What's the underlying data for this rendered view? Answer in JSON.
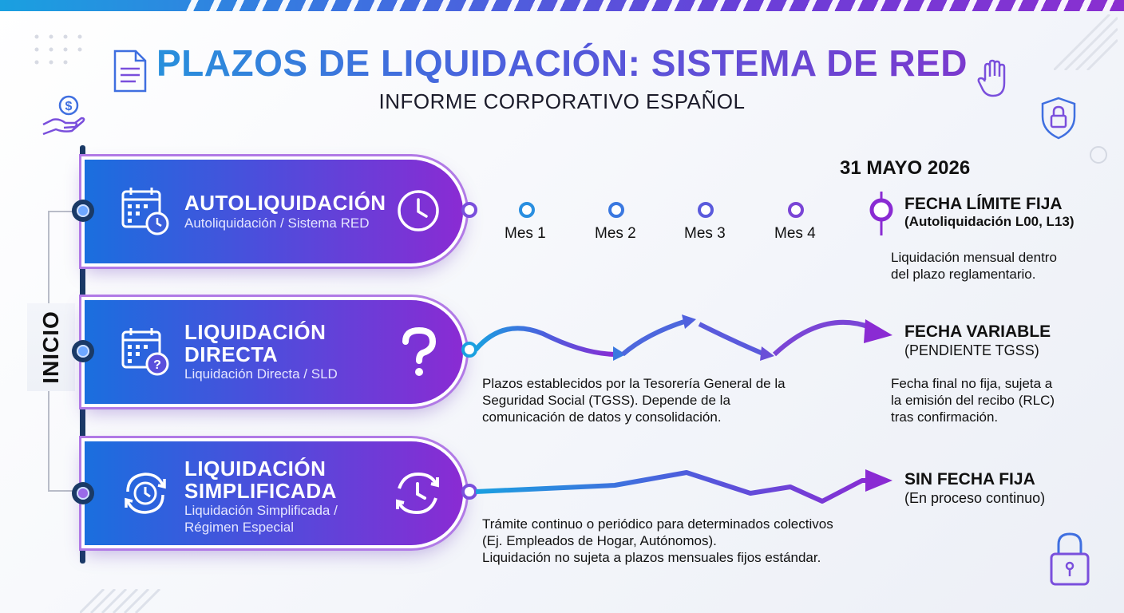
{
  "header": {
    "title": "PLAZOS DE LIQUIDACIÓN: SISTEMA DE RED",
    "subtitle": "INFORME CORPORATIVO ESPAÑOL"
  },
  "axis_label": "INICIO",
  "deadline_date": "31 MAYO 2026",
  "rows": [
    {
      "title": "AUTOLIQUIDACIÓN",
      "subtitle": "Autoliquidación / Sistema RED",
      "icon_left": "calendar-clock-icon",
      "icon_right": "clock-icon",
      "months": [
        "Mes 1",
        "Mes 2",
        "Mes 3",
        "Mes 4"
      ],
      "result_title": "FECHA LÍMITE FIJA",
      "result_sub": "(Autoliquidación L00, L13)",
      "result_desc": [
        "Liquidación mensual dentro",
        "del plazo reglamentario."
      ]
    },
    {
      "title_lines": [
        "LIQUIDACIÓN",
        "DIRECTA"
      ],
      "subtitle": "Liquidación Directa / SLD",
      "icon_left": "calendar-question-icon",
      "icon_right": "question-mark-icon",
      "desc": [
        "Plazos establecidos por la Tesorería General de la",
        "Seguridad Social (TGSS). Depende de la",
        "comunicación de datos y consolidación."
      ],
      "result_title": "FECHA VARIABLE",
      "result_sub": "(PENDIENTE TGSS)",
      "result_desc": [
        "Fecha final no fija, sujeta a",
        "la emisión del recibo (RLC)",
        "tras confirmación."
      ]
    },
    {
      "title_lines": [
        "LIQUIDACIÓN",
        "SIMPLIFICADA"
      ],
      "subtitle_lines": [
        "Liquidación Simplificada /",
        "Régimen Especial"
      ],
      "icon_left": "cycle-clock-icon",
      "icon_right": "refresh-clock-icon",
      "desc": [
        "Trámite continuo o periódico para determinados colectivos",
        "(Ej. Empleados de Hogar, Autónomos).",
        "Liquidación no sujeta a plazos mensuales fijos estándar."
      ],
      "result_title": "SIN FECHA FIJA",
      "result_sub": "(En proceso continuo)"
    }
  ],
  "colors": {
    "blue": "#1a6fde",
    "purple": "#8a2bd3",
    "navy": "#1a3a66",
    "cyan": "#18a6dc"
  },
  "decorations": [
    "document-icon",
    "money-hand-icon",
    "hand-icon",
    "shield-lock-icon",
    "padlock-icon"
  ]
}
